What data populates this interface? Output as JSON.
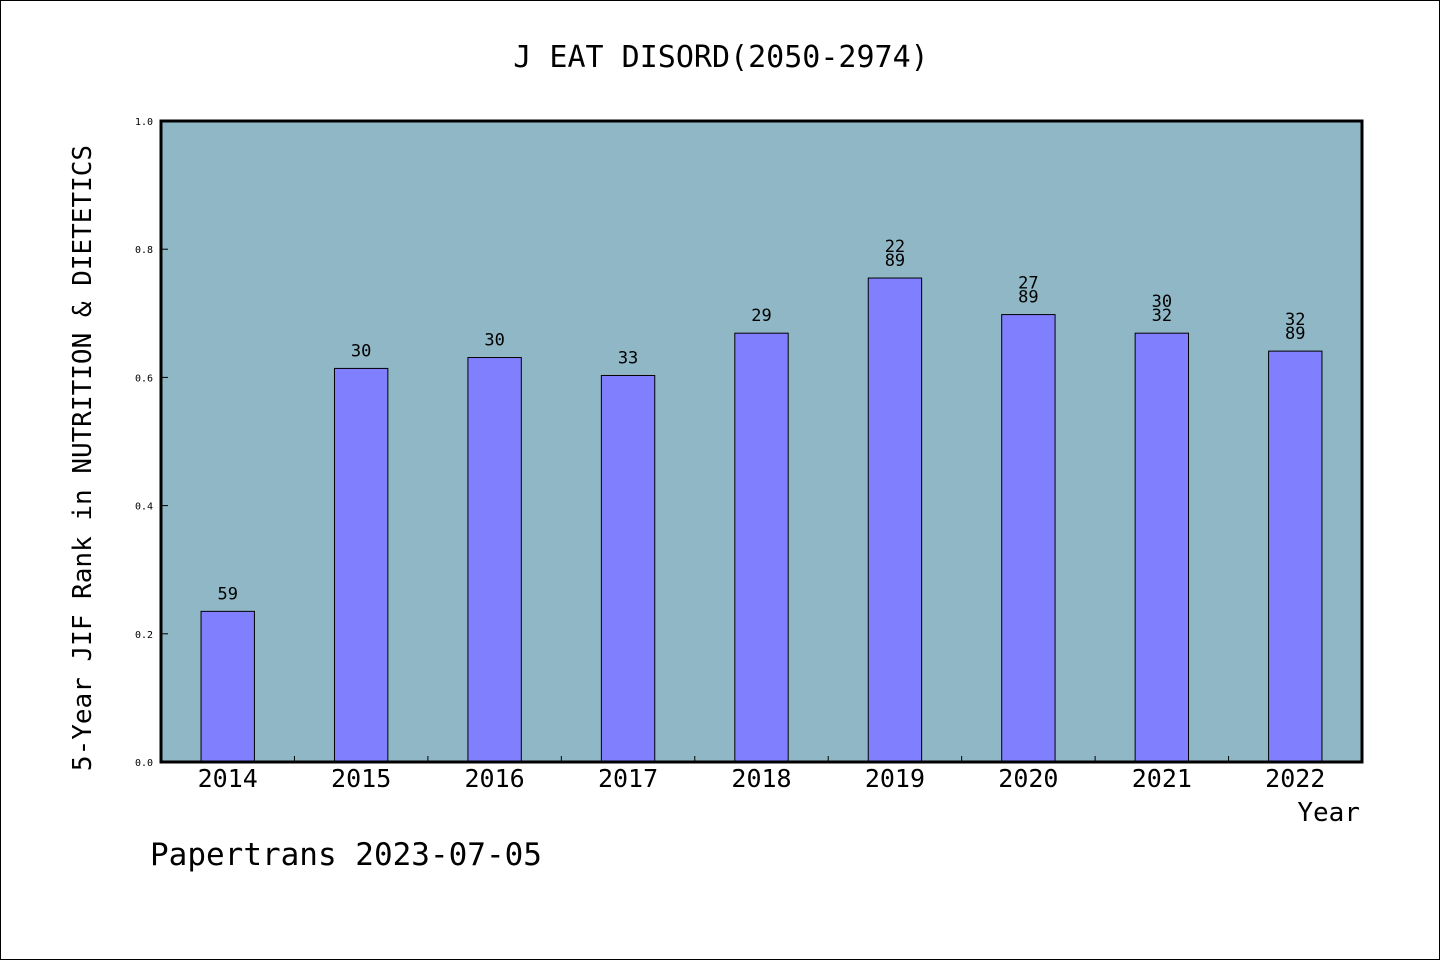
{
  "chart_data": {
    "type": "bar",
    "title": "J EAT DISORD(2050-2974)",
    "xlabel": "Year",
    "ylabel": "5-Year JIF Rank in NUTRITION & DIETETICS",
    "ylim": [
      0,
      1.0
    ],
    "yticks": [
      "0.0",
      "0.2",
      "0.4",
      "0.6",
      "0.8",
      "1.0"
    ],
    "grid": false,
    "colors": {
      "plot_bg": "#8fb7c6",
      "bar_fill": "#8080ff",
      "bar_stroke": "#000000"
    },
    "categories": [
      "2014",
      "2015",
      "2016",
      "2017",
      "2018",
      "2019",
      "2020",
      "2021",
      "2022"
    ],
    "values": [
      0.235,
      0.614,
      0.631,
      0.603,
      0.669,
      0.755,
      0.698,
      0.669,
      0.641
    ],
    "bar_labels": [
      [
        "59"
      ],
      [
        "30"
      ],
      [
        "30"
      ],
      [
        "33"
      ],
      [
        "29"
      ],
      [
        "22",
        "89"
      ],
      [
        "27",
        "89"
      ],
      [
        "30",
        "32"
      ],
      [
        "32",
        "89"
      ]
    ]
  },
  "footer": {
    "text": "Papertrans 2023-07-05"
  }
}
